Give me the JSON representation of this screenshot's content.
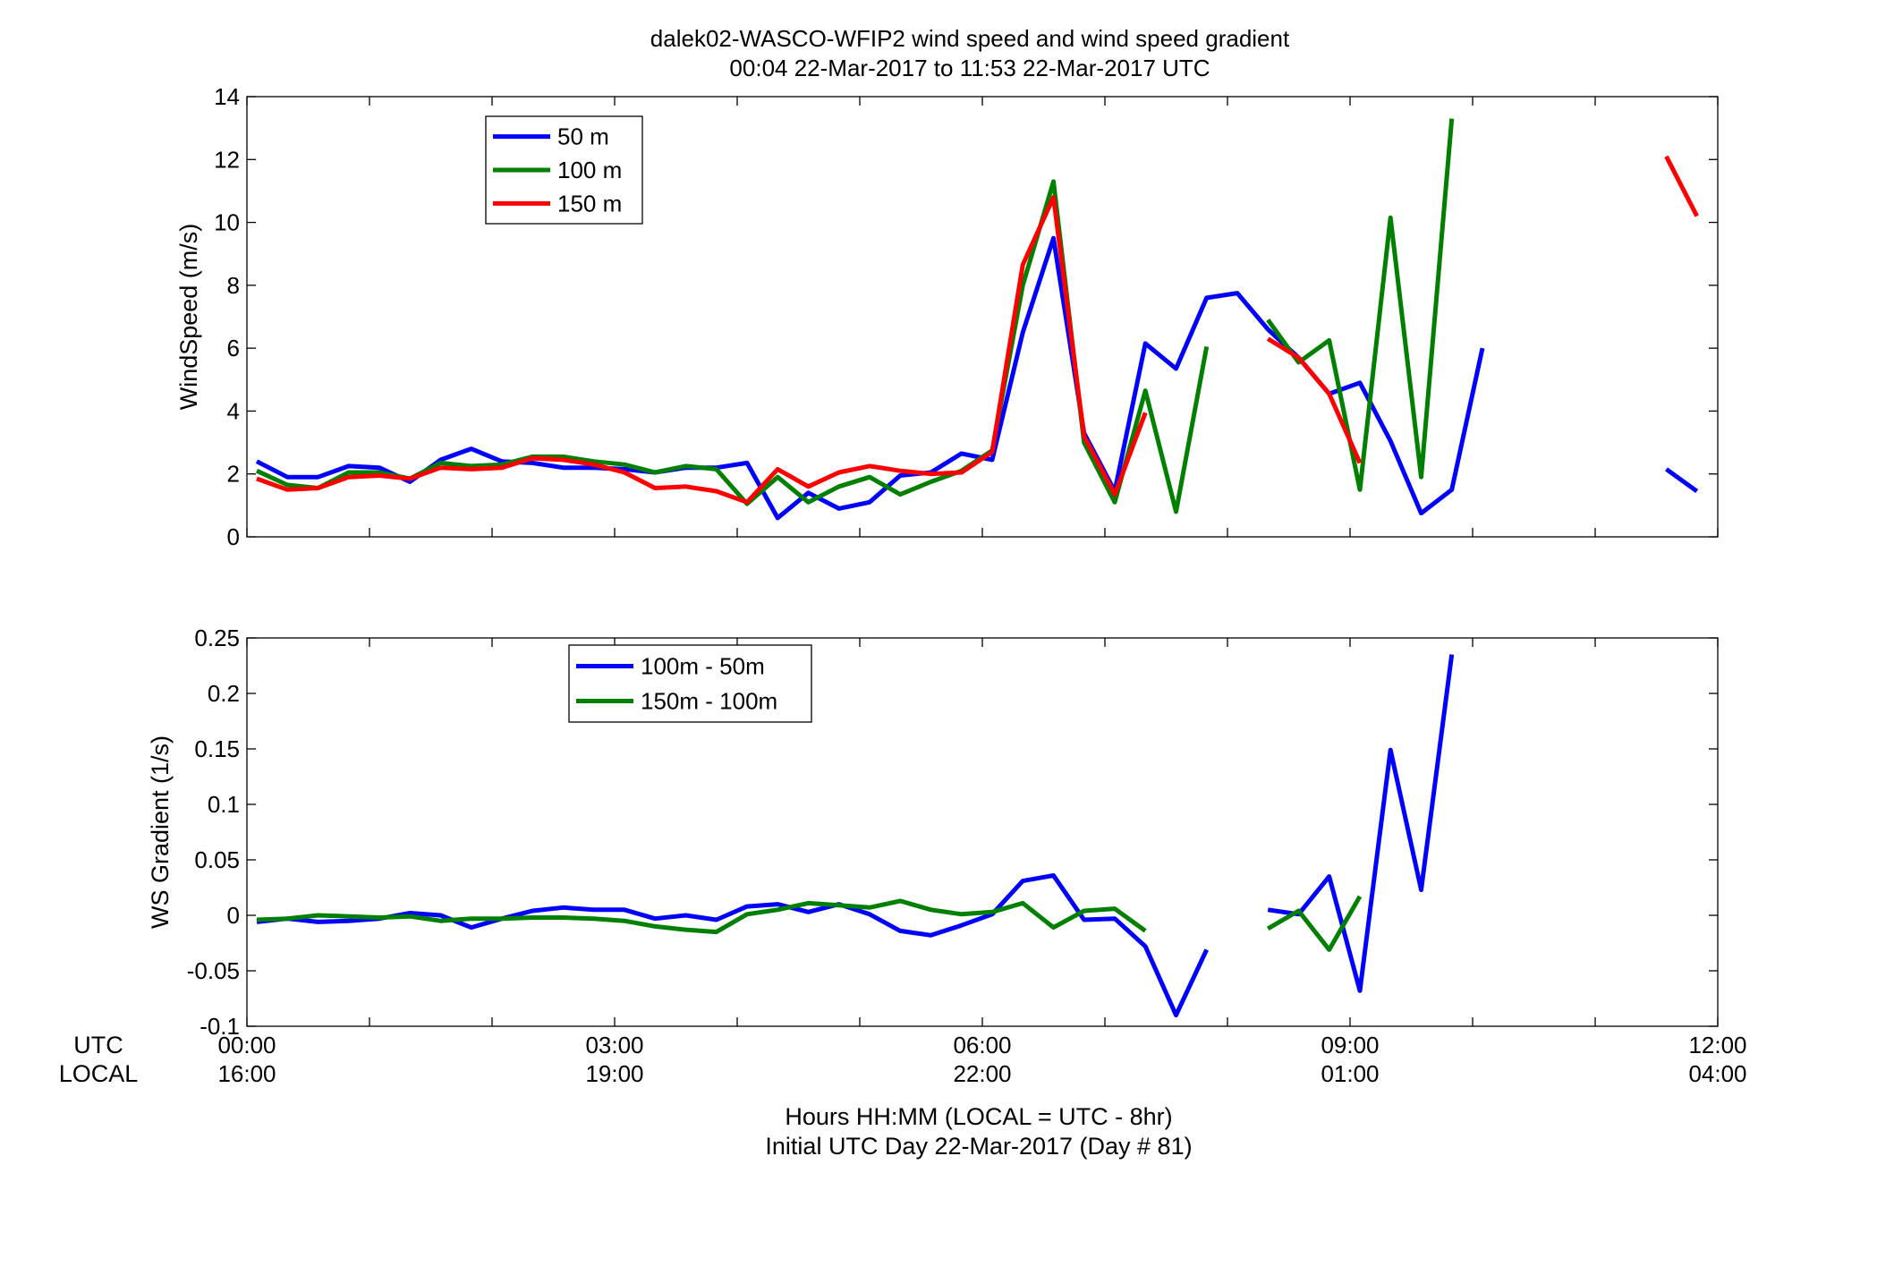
{
  "figure": {
    "title_line1": "dalek02-WASCO-WFIP2  wind speed and wind speed gradient",
    "title_line2": "00:04 22-Mar-2017 to 11:53 22-Mar-2017  UTC",
    "xlabel_line1": "Hours HH:MM  (LOCAL = UTC - 8hr)",
    "xlabel_line2": "Initial UTC Day 22-Mar-2017 (Day # 81)",
    "row_label_utc": "UTC",
    "row_label_local": "LOCAL",
    "x_ticks_utc": [
      "00:00",
      "03:00",
      "06:00",
      "09:00",
      "12:00"
    ],
    "x_ticks_local": [
      "16:00",
      "19:00",
      "22:00",
      "01:00",
      "04:00"
    ]
  },
  "chart_data": [
    {
      "type": "line",
      "ylabel": "WindSpeed (m/s)",
      "xlim": [
        0,
        12
      ],
      "ylim": [
        0,
        14
      ],
      "yticks": [
        0,
        2,
        4,
        6,
        8,
        10,
        12,
        14
      ],
      "yticklabels": [
        "0",
        "2",
        "4",
        "6",
        "8",
        "10",
        "12",
        "14"
      ],
      "grid": false,
      "legend": "top-left",
      "series": [
        {
          "name": "50 m",
          "color": "#0000ff",
          "points": [
            [
              0.08,
              2.4
            ],
            [
              0.33,
              1.9
            ],
            [
              0.58,
              1.9
            ],
            [
              0.83,
              2.25
            ],
            [
              1.08,
              2.2
            ],
            [
              1.33,
              1.75
            ],
            [
              1.58,
              2.45
            ],
            [
              1.83,
              2.8
            ],
            [
              2.08,
              2.4
            ],
            [
              2.33,
              2.35
            ],
            [
              2.58,
              2.2
            ],
            [
              2.83,
              2.2
            ],
            [
              3.08,
              2.15
            ],
            [
              3.33,
              2.05
            ],
            [
              3.58,
              2.2
            ],
            [
              3.83,
              2.2
            ],
            [
              4.08,
              2.35
            ],
            [
              4.33,
              0.6
            ],
            [
              4.58,
              1.4
            ],
            [
              4.83,
              0.9
            ],
            [
              5.08,
              1.1
            ],
            [
              5.33,
              1.95
            ],
            [
              5.58,
              2.05
            ],
            [
              5.83,
              2.65
            ],
            [
              6.08,
              2.45
            ],
            [
              6.33,
              6.5
            ],
            [
              6.58,
              9.5
            ],
            [
              6.83,
              3.3
            ],
            [
              7.08,
              1.45
            ],
            [
              7.33,
              6.15
            ],
            [
              7.58,
              5.35
            ],
            [
              7.83,
              7.6
            ],
            [
              8.08,
              7.75
            ],
            [
              8.33,
              6.6
            ],
            [
              8.58,
              5.7
            ],
            [
              8.83,
              4.55
            ],
            [
              9.08,
              4.9
            ],
            [
              9.33,
              3.05
            ],
            [
              9.58,
              0.75
            ],
            [
              9.83,
              1.5
            ],
            [
              10.08,
              6.0
            ],
            null,
            [
              11.58,
              2.15
            ],
            [
              11.83,
              1.45
            ]
          ]
        },
        {
          "name": "100 m",
          "color": "#008000",
          "points": [
            [
              0.08,
              2.1
            ],
            [
              0.33,
              1.65
            ],
            [
              0.58,
              1.55
            ],
            [
              0.83,
              2.05
            ],
            [
              1.08,
              2.05
            ],
            [
              1.33,
              1.85
            ],
            [
              1.58,
              2.35
            ],
            [
              1.83,
              2.25
            ],
            [
              2.08,
              2.3
            ],
            [
              2.33,
              2.55
            ],
            [
              2.58,
              2.55
            ],
            [
              2.83,
              2.4
            ],
            [
              3.08,
              2.3
            ],
            [
              3.33,
              2.05
            ],
            [
              3.58,
              2.25
            ],
            [
              3.83,
              2.15
            ],
            [
              4.08,
              1.05
            ],
            [
              4.33,
              1.9
            ],
            [
              4.58,
              1.1
            ],
            [
              4.83,
              1.6
            ],
            [
              5.08,
              1.9
            ],
            [
              5.33,
              1.35
            ],
            [
              5.58,
              1.75
            ],
            [
              5.83,
              2.1
            ],
            [
              6.08,
              2.75
            ],
            [
              6.33,
              8.0
            ],
            [
              6.58,
              11.3
            ],
            [
              6.83,
              3.0
            ],
            [
              7.08,
              1.1
            ],
            [
              7.33,
              4.65
            ],
            [
              7.58,
              0.8
            ],
            [
              7.83,
              6.05
            ],
            null,
            [
              8.33,
              6.9
            ],
            [
              8.58,
              5.55
            ],
            [
              8.83,
              6.25
            ],
            [
              9.08,
              1.5
            ],
            [
              9.33,
              10.15
            ],
            [
              9.58,
              1.9
            ],
            [
              9.83,
              13.3
            ]
          ]
        },
        {
          "name": "150 m",
          "color": "#ff0000",
          "points": [
            [
              0.08,
              1.85
            ],
            [
              0.33,
              1.5
            ],
            [
              0.58,
              1.55
            ],
            [
              0.83,
              1.9
            ],
            [
              1.08,
              1.95
            ],
            [
              1.33,
              1.85
            ],
            [
              1.58,
              2.2
            ],
            [
              1.83,
              2.15
            ],
            [
              2.08,
              2.2
            ],
            [
              2.33,
              2.5
            ],
            [
              2.58,
              2.45
            ],
            [
              2.83,
              2.3
            ],
            [
              3.08,
              2.05
            ],
            [
              3.33,
              1.55
            ],
            [
              3.58,
              1.6
            ],
            [
              3.83,
              1.45
            ],
            [
              4.08,
              1.1
            ],
            [
              4.33,
              2.15
            ],
            [
              4.58,
              1.6
            ],
            [
              4.83,
              2.05
            ],
            [
              5.08,
              2.25
            ],
            [
              5.33,
              2.1
            ],
            [
              5.58,
              2.0
            ],
            [
              5.83,
              2.05
            ],
            [
              6.08,
              2.7
            ],
            [
              6.33,
              8.65
            ],
            [
              6.58,
              10.8
            ],
            [
              6.83,
              3.2
            ],
            [
              7.08,
              1.35
            ],
            [
              7.33,
              3.95
            ],
            null,
            [
              8.33,
              6.3
            ],
            [
              8.58,
              5.7
            ],
            [
              8.83,
              4.55
            ],
            [
              9.08,
              2.35
            ],
            null,
            [
              11.58,
              12.1
            ],
            [
              11.83,
              10.2
            ]
          ]
        }
      ]
    },
    {
      "type": "line",
      "ylabel": "WS Gradient (1/s)",
      "xlim": [
        0,
        12
      ],
      "ylim": [
        -0.1,
        0.25
      ],
      "yticks": [
        -0.1,
        -0.05,
        0,
        0.05,
        0.1,
        0.15,
        0.2,
        0.25
      ],
      "yticklabels": [
        "-0.1",
        "-0.05",
        "0",
        "0.05",
        "0.1",
        "0.15",
        "0.2",
        "0.25"
      ],
      "grid": false,
      "legend": "top-left",
      "series": [
        {
          "name": "100m - 50m",
          "color": "#0000ff",
          "points": [
            [
              0.08,
              -0.006
            ],
            [
              0.33,
              -0.003
            ],
            [
              0.58,
              -0.006
            ],
            [
              0.83,
              -0.005
            ],
            [
              1.08,
              -0.003
            ],
            [
              1.33,
              0.002
            ],
            [
              1.58,
              0.0
            ],
            [
              1.83,
              -0.011
            ],
            [
              2.08,
              -0.003
            ],
            [
              2.33,
              0.004
            ],
            [
              2.58,
              0.007
            ],
            [
              2.83,
              0.005
            ],
            [
              3.08,
              0.005
            ],
            [
              3.33,
              -0.003
            ],
            [
              3.58,
              0.0
            ],
            [
              3.83,
              -0.004
            ],
            [
              4.08,
              0.008
            ],
            [
              4.33,
              0.01
            ],
            [
              4.58,
              0.003
            ],
            [
              4.83,
              0.01
            ],
            [
              5.08,
              0.001
            ],
            [
              5.33,
              -0.014
            ],
            [
              5.58,
              -0.018
            ],
            [
              5.83,
              -0.009
            ],
            [
              6.08,
              0.001
            ],
            [
              6.33,
              0.031
            ],
            [
              6.58,
              0.036
            ],
            [
              6.83,
              -0.004
            ],
            [
              7.08,
              -0.003
            ],
            [
              7.33,
              -0.028
            ],
            [
              7.58,
              -0.09
            ],
            [
              7.83,
              -0.031
            ],
            null,
            [
              8.33,
              0.005
            ],
            [
              8.58,
              0.001
            ],
            [
              8.83,
              0.035
            ],
            [
              9.08,
              -0.068
            ],
            [
              9.33,
              0.149
            ],
            [
              9.58,
              0.023
            ],
            [
              9.83,
              0.235
            ]
          ]
        },
        {
          "name": "150m - 100m",
          "color": "#008000",
          "points": [
            [
              0.08,
              -0.004
            ],
            [
              0.33,
              -0.003
            ],
            [
              0.58,
              0.0
            ],
            [
              0.83,
              -0.001
            ],
            [
              1.08,
              -0.002
            ],
            [
              1.33,
              -0.001
            ],
            [
              1.58,
              -0.005
            ],
            [
              1.83,
              -0.003
            ],
            [
              2.08,
              -0.003
            ],
            [
              2.33,
              -0.002
            ],
            [
              2.58,
              -0.002
            ],
            [
              2.83,
              -0.003
            ],
            [
              3.08,
              -0.005
            ],
            [
              3.33,
              -0.01
            ],
            [
              3.58,
              -0.013
            ],
            [
              3.83,
              -0.015
            ],
            [
              4.08,
              0.001
            ],
            [
              4.33,
              0.005
            ],
            [
              4.58,
              0.011
            ],
            [
              4.83,
              0.009
            ],
            [
              5.08,
              0.007
            ],
            [
              5.33,
              0.013
            ],
            [
              5.58,
              0.005
            ],
            [
              5.83,
              0.001
            ],
            [
              6.08,
              0.003
            ],
            [
              6.33,
              0.011
            ],
            [
              6.58,
              -0.011
            ],
            [
              6.83,
              0.004
            ],
            [
              7.08,
              0.006
            ],
            [
              7.33,
              -0.014
            ],
            null,
            [
              8.33,
              -0.012
            ],
            [
              8.58,
              0.004
            ],
            [
              8.83,
              -0.031
            ],
            [
              9.08,
              0.017
            ]
          ]
        }
      ]
    }
  ]
}
